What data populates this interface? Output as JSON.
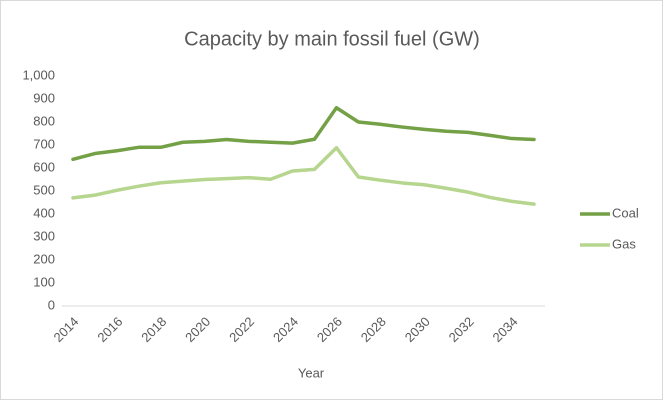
{
  "chart_data": {
    "type": "line",
    "title": "Capacity by main fossil fuel (GW)",
    "xlabel": "Year",
    "categories": [
      "2014",
      null,
      "2016",
      null,
      "2018",
      null,
      "2020",
      null,
      "2022",
      null,
      "2024",
      null,
      "2026",
      null,
      "2028",
      null,
      "2030",
      null,
      "2032",
      null,
      "2034",
      null
    ],
    "series": [
      {
        "name": "Coal",
        "color": "#74a046",
        "values": [
          638,
          663,
          675,
          690,
          690,
          712,
          716,
          724,
          716,
          712,
          708,
          725,
          862,
          800,
          790,
          778,
          768,
          760,
          755,
          742,
          728,
          724
        ]
      },
      {
        "name": "Gas",
        "color": "#b6d58e",
        "values": [
          470,
          482,
          503,
          521,
          536,
          543,
          550,
          554,
          558,
          551,
          587,
          594,
          688,
          561,
          547,
          535,
          527,
          512,
          495,
          472,
          455,
          443
        ]
      }
    ],
    "ylim": [
      0,
      1000
    ],
    "yticks": [
      0,
      100,
      200,
      300,
      400,
      500,
      600,
      700,
      800,
      900,
      {
        "value": 1000,
        "label": "1,000"
      }
    ],
    "grid": false,
    "legend": "right"
  }
}
